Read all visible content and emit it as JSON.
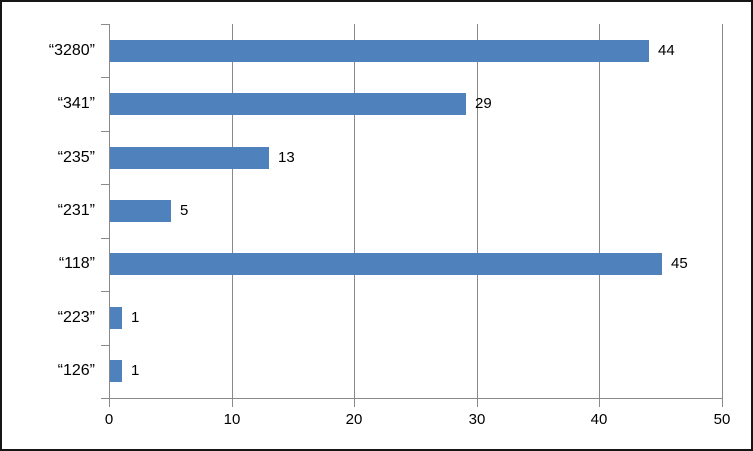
{
  "chart_data": {
    "type": "bar",
    "orientation": "horizontal",
    "title": "",
    "xlabel": "",
    "ylabel": "",
    "categories": [
      "“3280”",
      "“341”",
      "“235”",
      "“231”",
      "“118”",
      "“223”",
      "“126”"
    ],
    "values": [
      44,
      29,
      13,
      5,
      45,
      1,
      1
    ],
    "data_labels": [
      "44",
      "29",
      "13",
      "5",
      "45",
      "1",
      "1"
    ],
    "xlim": [
      0,
      50
    ],
    "x_ticks": [
      0,
      10,
      20,
      30,
      40,
      50
    ],
    "grid": true,
    "legend": false,
    "colors": {
      "bar_fill": "#4f81bd",
      "axis_line": "#898989",
      "gridline": "#898989",
      "label_text": "#000000",
      "background": "#ffffff",
      "frame_border": "#161616"
    }
  }
}
